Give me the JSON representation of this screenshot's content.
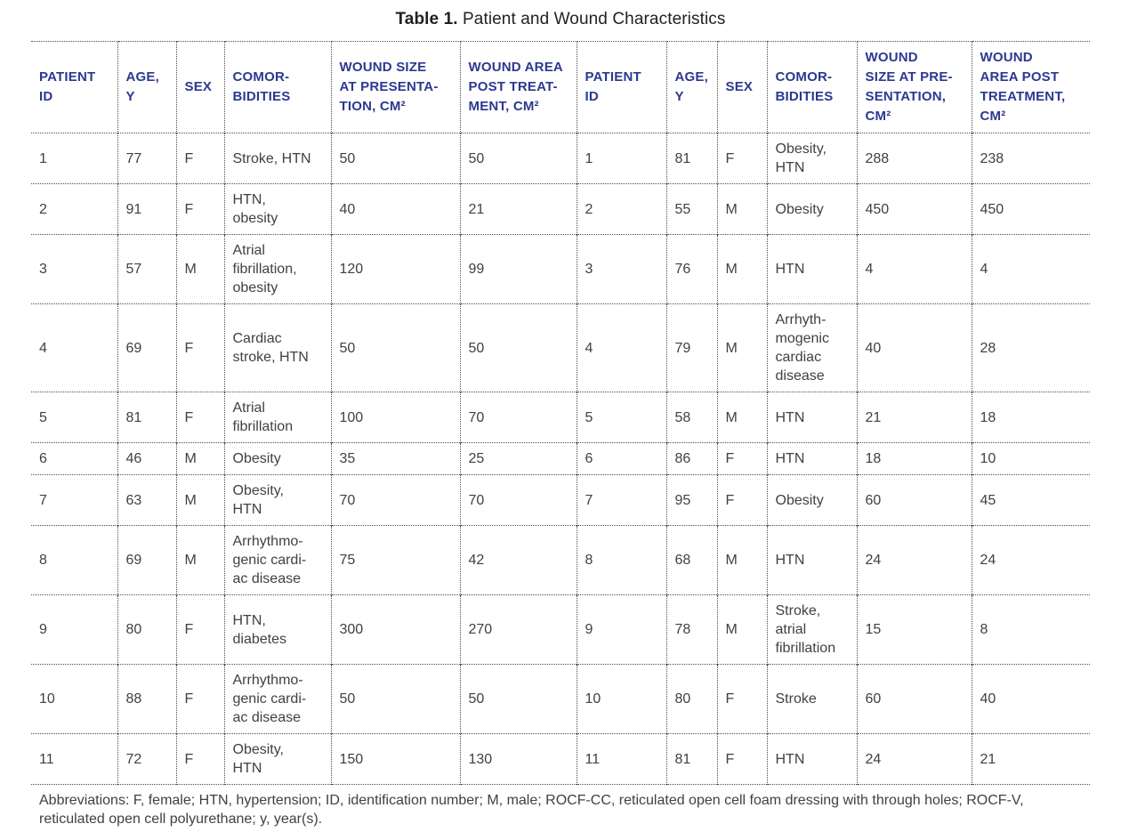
{
  "page": {
    "title_bold": "Table 1.",
    "title_text": " Patient and Wound Characteristics"
  },
  "colors": {
    "header_text": "#2b3990",
    "body_text": "#414042",
    "dotted_border": "#4d4d4d",
    "bottom_rule": "#272325",
    "background": "#ffffff"
  },
  "table": {
    "headers": [
      "PATIENT\nID",
      "AGE,\nY",
      "SEX",
      "COMOR-\nBIDITIES",
      "WOUND SIZE\nAT PRESENTA-\nTION, CM²",
      "WOUND AREA\nPOST TREAT-\nMENT, CM²",
      "PATIENT\nID",
      "AGE,\nY",
      "SEX",
      "COMOR-\nBIDITIES",
      "WOUND\nSIZE AT PRE-\nSENTATION,\nCM²",
      "WOUND\nAREA POST\nTREATMENT,\nCM²"
    ],
    "rows": [
      [
        "1",
        "77",
        "F",
        "Stroke, HTN",
        "50",
        "50",
        "1",
        "81",
        "F",
        "Obesity,\nHTN",
        "288",
        "238"
      ],
      [
        "2",
        "91",
        "F",
        "HTN,\nobesity",
        "40",
        "21",
        "2",
        "55",
        "M",
        "Obesity",
        "450",
        "450"
      ],
      [
        "3",
        "57",
        "M",
        "Atrial\nfibrillation,\nobesity",
        "120",
        "99",
        "3",
        "76",
        "M",
        "HTN",
        "4",
        "4"
      ],
      [
        "4",
        "69",
        "F",
        "Cardiac\nstroke, HTN",
        "50",
        "50",
        "4",
        "79",
        "M",
        "Arrhyth-\nmogenic\ncardiac\ndisease",
        "40",
        "28"
      ],
      [
        "5",
        "81",
        "F",
        "Atrial\nfibrillation",
        "100",
        "70",
        "5",
        "58",
        "M",
        "HTN",
        "21",
        "18"
      ],
      [
        "6",
        "46",
        "M",
        "Obesity",
        "35",
        "25",
        "6",
        "86",
        "F",
        "HTN",
        "18",
        "10"
      ],
      [
        "7",
        "63",
        "M",
        "Obesity,\nHTN",
        "70",
        "70",
        "7",
        "95",
        "F",
        "Obesity",
        "60",
        "45"
      ],
      [
        "8",
        "69",
        "M",
        "Arrhythmo-\ngenic cardi-\nac disease",
        "75",
        "42",
        "8",
        "68",
        "M",
        "HTN",
        "24",
        "24"
      ],
      [
        "9",
        "80",
        "F",
        "HTN,\ndiabetes",
        "300",
        "270",
        "9",
        "78",
        "M",
        "Stroke,\natrial\nfibrillation",
        "15",
        "8"
      ],
      [
        "10",
        "88",
        "F",
        "Arrhythmo-\ngenic cardi-\nac disease",
        "50",
        "50",
        "10",
        "80",
        "F",
        "Stroke",
        "60",
        "40"
      ],
      [
        "11",
        "72",
        "F",
        "Obesity,\nHTN",
        "150",
        "130",
        "11",
        "81",
        "F",
        "HTN",
        "24",
        "21"
      ]
    ],
    "footnote": "Abbreviations: F, female; HTN, hypertension; ID, identification number; M, male; ROCF-CC, reticulated open cell foam dressing with through holes; ROCF-V, reticulated open cell polyurethane; y, year(s)."
  }
}
